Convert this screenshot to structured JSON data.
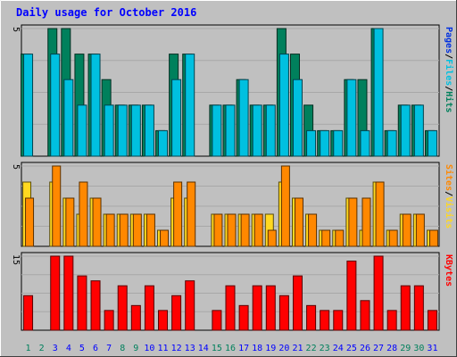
{
  "chart_data": {
    "type": "bar",
    "title": "Daily usage for October 2016",
    "categories": [
      "1",
      "2",
      "3",
      "4",
      "5",
      "6",
      "7",
      "8",
      "9",
      "10",
      "11",
      "12",
      "13",
      "14",
      "15",
      "16",
      "17",
      "18",
      "19",
      "20",
      "21",
      "22",
      "23",
      "24",
      "25",
      "26",
      "27",
      "28",
      "29",
      "30",
      "31"
    ],
    "weekend_days": [
      "1",
      "2",
      "8",
      "9",
      "15",
      "16",
      "22",
      "23",
      "29",
      "30"
    ],
    "panels": [
      {
        "ymax": 5,
        "ytick": "5",
        "series": [
          {
            "name": "Hits",
            "color": "#00805c",
            "values": [
              4,
              0,
              5,
              5,
              4,
              4,
              3,
              2,
              2,
              2,
              1,
              4,
              4,
              0,
              2,
              2,
              3,
              2,
              2,
              5,
              4,
              2,
              1,
              1,
              3,
              3,
              5,
              1,
              2,
              2,
              1
            ]
          },
          {
            "name": "Files",
            "color": "#00c0e0",
            "values": [
              4,
              0,
              4,
              3,
              2,
              4,
              2,
              2,
              2,
              2,
              1,
              3,
              4,
              0,
              2,
              2,
              3,
              2,
              2,
              4,
              3,
              1,
              1,
              1,
              3,
              1,
              5,
              1,
              2,
              2,
              1
            ]
          },
          {
            "name": "Pages",
            "color": "#0030e0",
            "values": [
              0,
              0,
              0,
              0,
              0,
              0,
              0,
              0,
              0,
              0,
              0,
              0,
              0,
              0,
              0,
              0,
              0,
              0,
              0,
              0,
              0,
              0,
              0,
              0,
              0,
              0,
              0,
              0,
              0,
              0,
              0
            ]
          }
        ]
      },
      {
        "ymax": 5,
        "ytick": "5",
        "series": [
          {
            "name": "Visits",
            "color": "#ffd820",
            "values": [
              4,
              0,
              4,
              3,
              2,
              3,
              2,
              2,
              2,
              2,
              1,
              3,
              3,
              0,
              2,
              2,
              2,
              2,
              2,
              4,
              3,
              2,
              1,
              1,
              3,
              1,
              4,
              1,
              2,
              2,
              1
            ]
          },
          {
            "name": "Sites",
            "color": "#ff8800",
            "values": [
              3,
              0,
              5,
              3,
              4,
              3,
              2,
              2,
              2,
              2,
              1,
              4,
              4,
              0,
              2,
              2,
              2,
              2,
              1,
              5,
              3,
              2,
              1,
              1,
              3,
              3,
              4,
              1,
              2,
              2,
              1
            ]
          }
        ]
      },
      {
        "ymax": 15,
        "ytick": "15",
        "series": [
          {
            "name": "KBytes",
            "color": "#ff0000",
            "values": [
              7,
              0,
              15,
              15,
              11,
              10,
              4,
              9,
              5,
              9,
              4,
              7,
              10,
              0,
              4,
              9,
              5,
              9,
              9,
              7,
              11,
              5,
              4,
              4,
              14,
              6,
              15,
              4,
              9,
              9,
              4
            ]
          }
        ]
      }
    ]
  },
  "colors": {
    "background": "#c0c0c0",
    "title": "#0000ff",
    "weekday_label": "#0000ff",
    "weekend_label": "#00805c",
    "separator": "#000000"
  }
}
